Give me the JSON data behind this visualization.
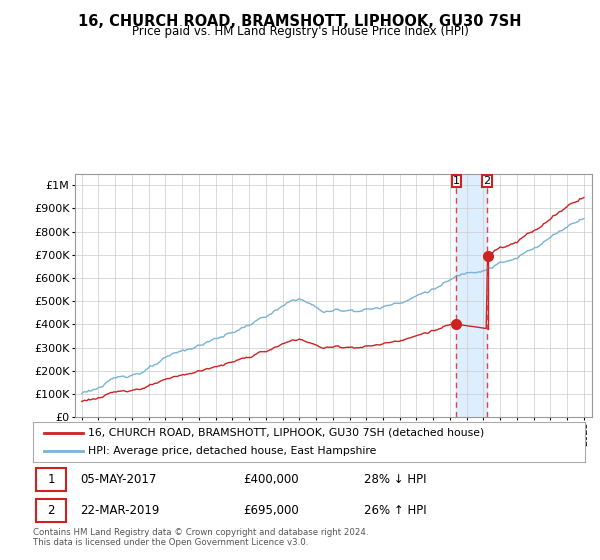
{
  "title": "16, CHURCH ROAD, BRAMSHOTT, LIPHOOK, GU30 7SH",
  "subtitle": "Price paid vs. HM Land Registry's House Price Index (HPI)",
  "legend_line1": "16, CHURCH ROAD, BRAMSHOTT, LIPHOOK, GU30 7SH (detached house)",
  "legend_line2": "HPI: Average price, detached house, East Hampshire",
  "annotation1_date": "05-MAY-2017",
  "annotation1_price": "£400,000",
  "annotation1_hpi": "28% ↓ HPI",
  "annotation2_date": "22-MAR-2019",
  "annotation2_price": "£695,000",
  "annotation2_hpi": "26% ↑ HPI",
  "footer": "Contains HM Land Registry data © Crown copyright and database right 2024.\nThis data is licensed under the Open Government Licence v3.0.",
  "hpi_color": "#7ab3d6",
  "price_color": "#cc2222",
  "vline_color": "#dd4444",
  "shade_color": "#ddeeff",
  "annotation_box_color": "#cc2222",
  "ylim_min": 0,
  "ylim_max": 1050000,
  "sale1_year": 2017.37,
  "sale1_value": 400000,
  "sale2_year": 2019.22,
  "sale2_value": 695000,
  "start_year": 1995,
  "end_year": 2025
}
